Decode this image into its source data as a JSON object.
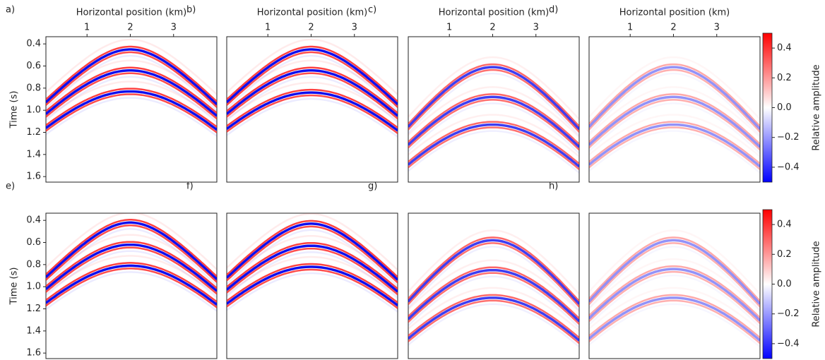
{
  "chart_data": [
    {
      "type": "wavefield",
      "label": "a)",
      "xlabel": "Horizontal position (km)",
      "xlim": [
        0.05,
        4.0
      ],
      "xticks": [
        1,
        2,
        3
      ],
      "ylabel": "Time (s)",
      "ylim": [
        0.335,
        1.65
      ],
      "yticks": [
        0.4,
        0.6,
        0.8,
        {
          "value": 1.0,
          "label": "1.0"
        },
        1.2,
        1.4,
        1.6
      ],
      "events": [
        0.45,
        0.64,
        0.83
      ]
    },
    {
      "type": "wavefield",
      "label": "b)",
      "xlabel": "Horizontal position (km)",
      "xlim": [
        0.05,
        4.0
      ],
      "xticks": [
        1,
        2,
        3
      ],
      "ylim": [
        0.335,
        1.65
      ],
      "events": [
        0.45,
        0.64,
        0.84
      ]
    },
    {
      "type": "wavefield",
      "label": "c)",
      "xlabel": "Horizontal position (km)",
      "xlim": [
        0.05,
        4.0
      ],
      "xticks": [
        1,
        2,
        3
      ],
      "ylim": [
        0.335,
        1.65
      ],
      "events": [
        0.61,
        0.88,
        1.13
      ]
    },
    {
      "type": "wavefield",
      "label": "d)",
      "xlabel": "Horizontal position (km)",
      "xlim": [
        0.05,
        4.0
      ],
      "xticks": [
        1,
        2,
        3
      ],
      "ylim": [
        0.335,
        1.65
      ],
      "events": [
        0.61,
        0.88,
        1.13
      ],
      "colorbar": {
        "label": "Relative amplitude",
        "clim": [
          -0.5,
          0.5
        ],
        "colormap": [
          "#0000ff",
          "#ffffff",
          "#ff0000"
        ],
        "ticks": [
          {
            "value": -0.4,
            "label": "−0.4"
          },
          {
            "value": -0.2,
            "label": "−0.2"
          },
          {
            "value": 0.0,
            "label": "0.0"
          },
          0.2,
          0.4
        ]
      }
    },
    {
      "type": "wavefield",
      "label": "e)",
      "xlim": [
        0.05,
        4.0
      ],
      "ylabel": "Time (s)",
      "ylim": [
        0.335,
        1.65
      ],
      "yticks": [
        0.4,
        0.6,
        0.8,
        {
          "value": 1.0,
          "label": "1.0"
        },
        1.2,
        1.4,
        1.6
      ],
      "events": [
        0.42,
        0.62,
        0.81
      ]
    },
    {
      "type": "wavefield",
      "label": "f)",
      "xlim": [
        0.05,
        4.0
      ],
      "ylim": [
        0.335,
        1.65
      ],
      "events": [
        0.43,
        0.63,
        0.82
      ]
    },
    {
      "type": "wavefield",
      "label": "g)",
      "xlim": [
        0.05,
        4.0
      ],
      "ylim": [
        0.335,
        1.65
      ],
      "events": [
        0.58,
        0.85,
        1.1
      ]
    },
    {
      "type": "wavefield",
      "label": "h)",
      "xlim": [
        0.05,
        4.0
      ],
      "ylim": [
        0.335,
        1.65
      ],
      "events": [
        0.58,
        0.84,
        1.1
      ],
      "colorbar": {
        "label": "Relative amplitude",
        "clim": [
          -0.5,
          0.5
        ],
        "colormap": [
          "#0000ff",
          "#ffffff",
          "#ff0000"
        ],
        "ticks": [
          {
            "value": -0.4,
            "label": "−0.4"
          },
          {
            "value": -0.2,
            "label": "−0.2"
          },
          {
            "value": 0.0,
            "label": "0.0"
          },
          0.2,
          0.4
        ]
      }
    }
  ]
}
